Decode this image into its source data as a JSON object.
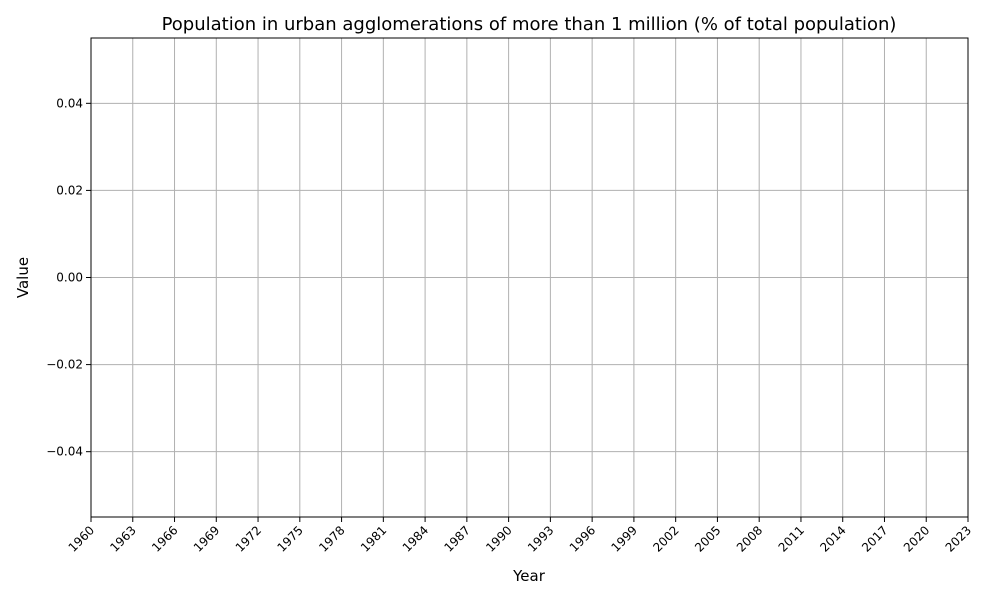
{
  "chart_data": {
    "type": "line",
    "title": "Population in urban agglomerations of more than 1 million (% of total population)",
    "xlabel": "Year",
    "ylabel": "Value",
    "x_ticks": [
      "1960",
      "1963",
      "1966",
      "1969",
      "1972",
      "1975",
      "1978",
      "1981",
      "1984",
      "1987",
      "1990",
      "1993",
      "1996",
      "1999",
      "2002",
      "2005",
      "2008",
      "2011",
      "2014",
      "2017",
      "2020",
      "2023"
    ],
    "y_ticks": [
      "0.04",
      "0.02",
      "0.00",
      "−0.02",
      "−0.04"
    ],
    "y_tick_values": [
      0.04,
      0.02,
      0.0,
      -0.02,
      -0.04
    ],
    "xlim": [
      1960,
      2023
    ],
    "ylim": [
      -0.055,
      0.055
    ],
    "grid": true,
    "series": []
  }
}
